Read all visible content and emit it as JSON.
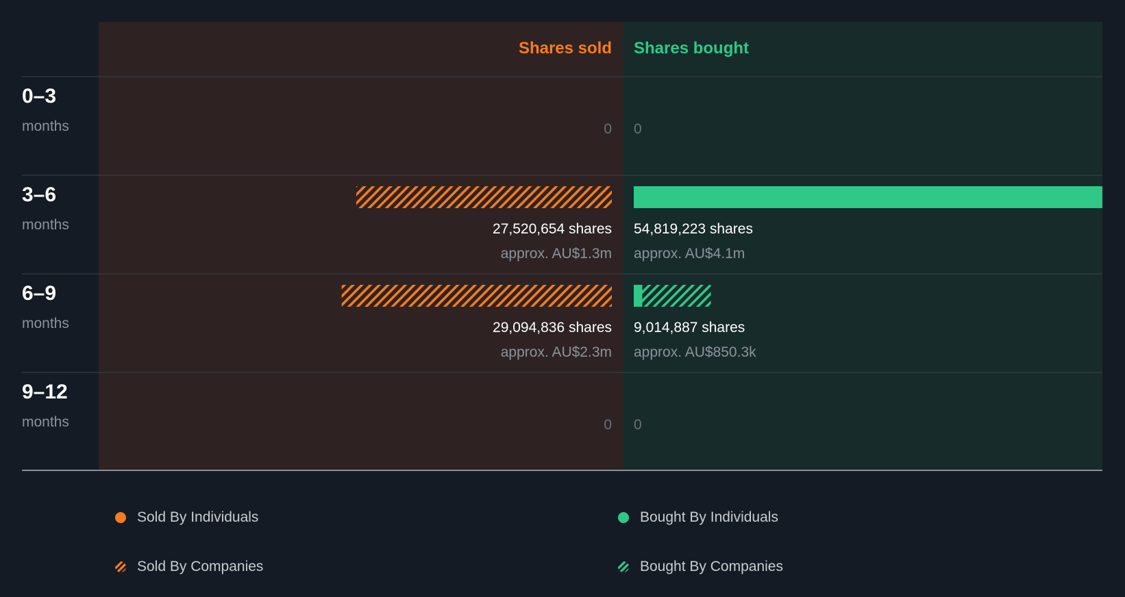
{
  "colors": {
    "sold": "#f57c1f",
    "bought": "#2ec987",
    "sold_panel": "#2e2322",
    "bought_panel": "#182b2b",
    "background": "#151b24"
  },
  "chart_data": {
    "type": "bar",
    "title": "",
    "columns": {
      "sold": "Shares sold",
      "bought": "Shares bought"
    },
    "rows": [
      {
        "period": "0–3",
        "unit": "months",
        "sold": {
          "individuals": 0,
          "companies": 0,
          "total_label": "0",
          "value_label": ""
        },
        "bought": {
          "individuals": 0,
          "companies": 0,
          "total_label": "0",
          "value_label": ""
        }
      },
      {
        "period": "3–6",
        "unit": "months",
        "sold": {
          "individuals": 0,
          "companies": 27520654,
          "total_label": "27,520,654 shares",
          "value_label": "approx. AU$1.3m"
        },
        "bought": {
          "individuals": 54819223,
          "companies": 0,
          "total_label": "54,819,223 shares",
          "value_label": "approx. AU$4.1m"
        }
      },
      {
        "period": "6–9",
        "unit": "months",
        "sold": {
          "individuals": 0,
          "companies": 29094836,
          "total_label": "29,094,836 shares",
          "value_label": "approx. AU$2.3m"
        },
        "bought": {
          "individuals": 1000000,
          "companies": 8014887,
          "total_label": "9,014,887 shares",
          "value_label": "approx. AU$850.3k"
        }
      },
      {
        "period": "9–12",
        "unit": "months",
        "sold": {
          "individuals": 0,
          "companies": 0,
          "total_label": "0",
          "value_label": ""
        },
        "bought": {
          "individuals": 0,
          "companies": 0,
          "total_label": "0",
          "value_label": ""
        }
      }
    ],
    "max_value": 54819223,
    "legend": [
      {
        "label": "Sold By Individuals",
        "style": "solid",
        "side": "sold"
      },
      {
        "label": "Bought By Individuals",
        "style": "solid",
        "side": "bought"
      },
      {
        "label": "Sold By Companies",
        "style": "hatched",
        "side": "sold"
      },
      {
        "label": "Bought By Companies",
        "style": "hatched",
        "side": "bought"
      }
    ]
  }
}
